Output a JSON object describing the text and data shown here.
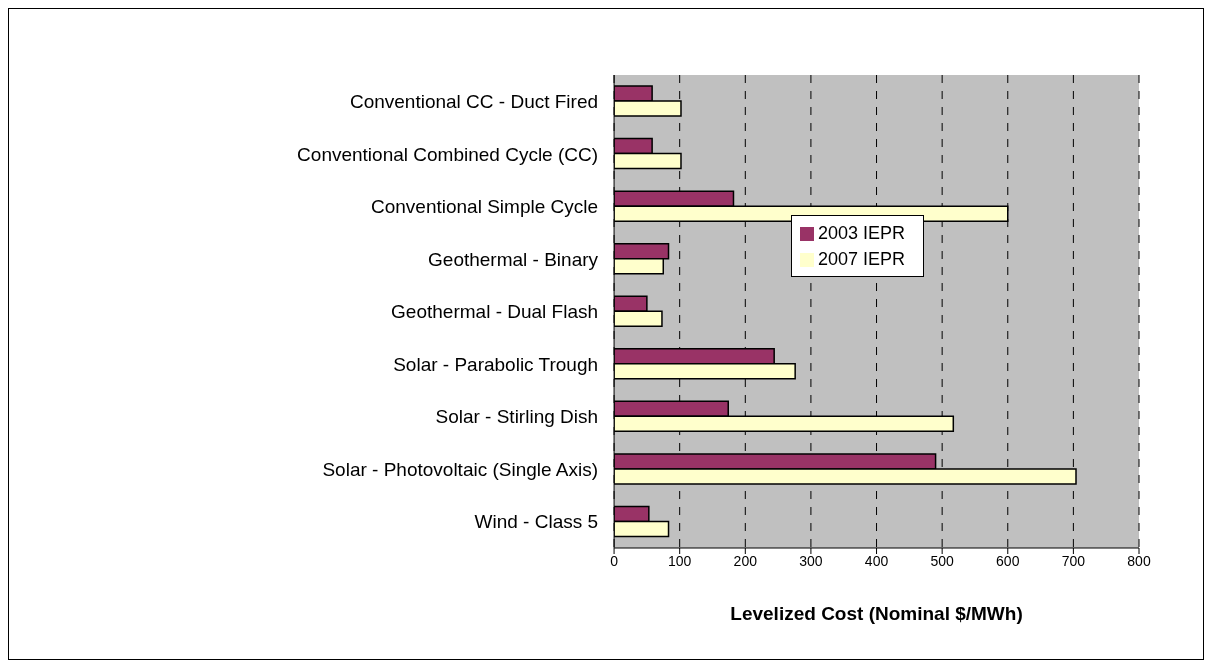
{
  "chart_data": {
    "type": "bar",
    "orientation": "horizontal",
    "xlabel": "Levelized Cost (Nominal $/MWh)",
    "categories": [
      "Conventional CC - Duct Fired",
      "Conventional Combined Cycle (CC)",
      "Conventional Simple Cycle ",
      "Geothermal - Binary",
      "Geothermal - Dual Flash",
      "Solar - Parabolic Trough",
      "Solar - Stirling Dish",
      "Solar - Photovoltaic (Single Axis)",
      "Wind - Class 5"
    ],
    "series": [
      {
        "name": "2003 IEPR",
        "color": "#993366",
        "values": [
          58,
          58,
          182,
          83,
          50,
          244,
          174,
          490,
          53
        ]
      },
      {
        "name": "2007 IEPR",
        "color": "#ffffcc",
        "values": [
          102,
          102,
          600,
          75,
          73,
          276,
          517,
          704,
          83
        ]
      }
    ],
    "xlim": [
      0,
      800
    ],
    "xticks": [
      0,
      100,
      200,
      300,
      400,
      500,
      600,
      700,
      800
    ],
    "grid": "x",
    "legend": "right"
  }
}
